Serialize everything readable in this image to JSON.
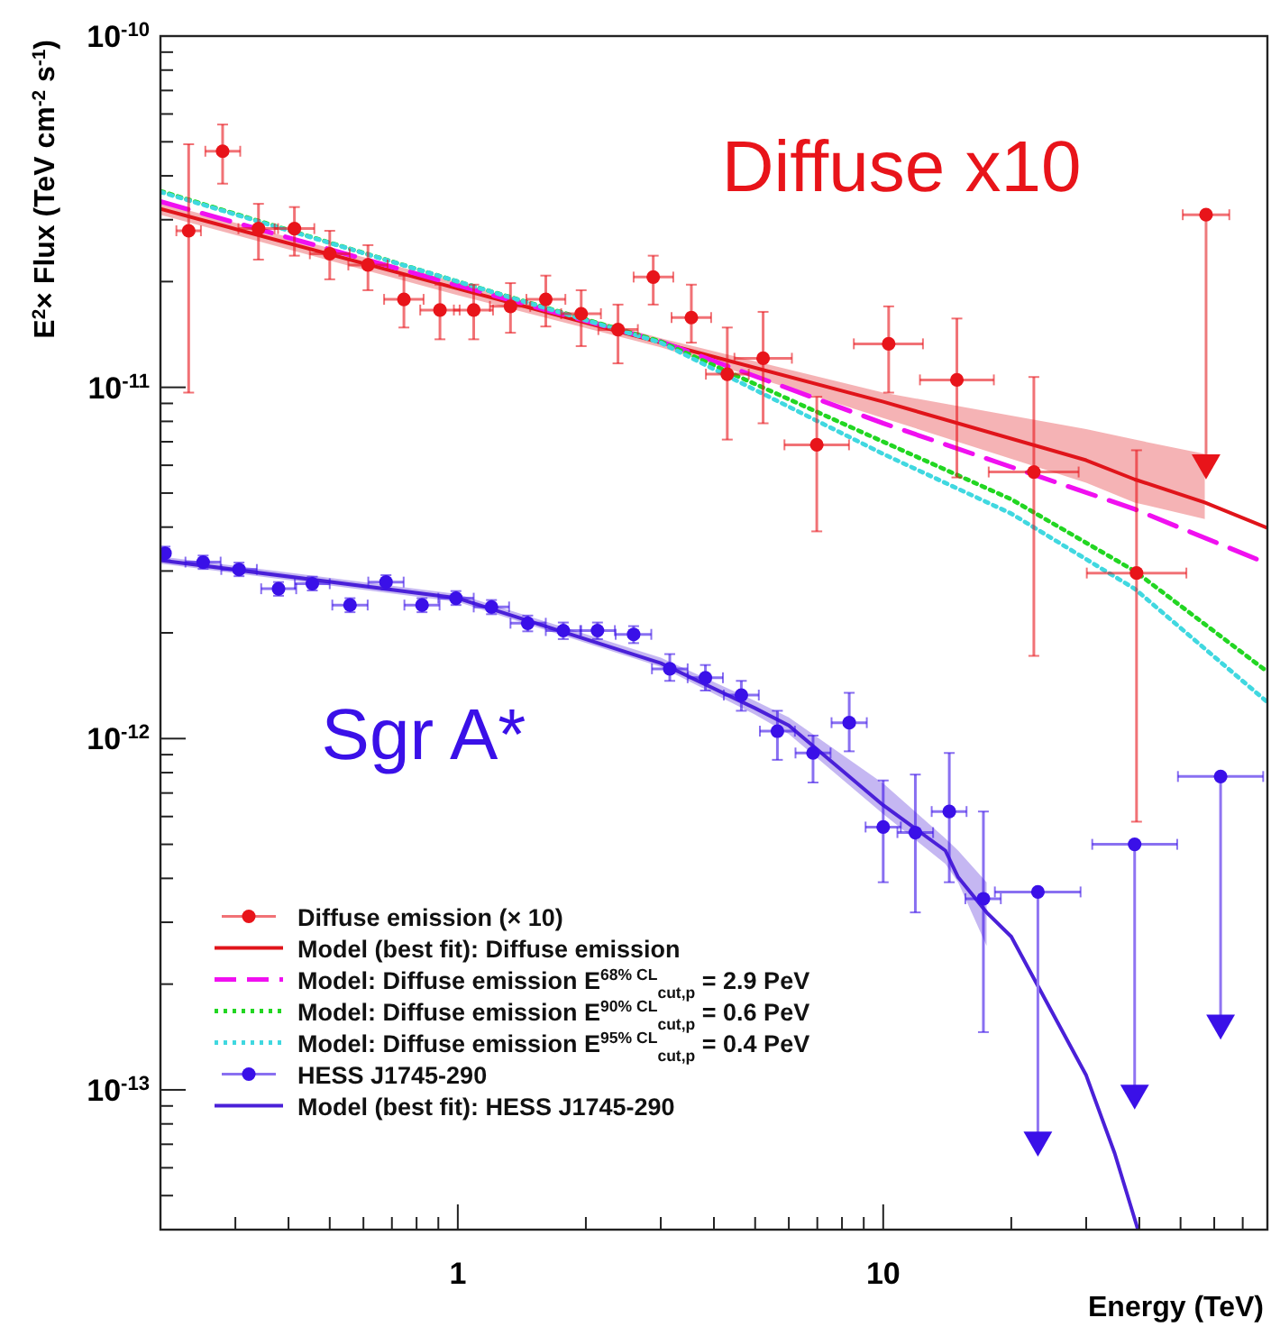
{
  "chart_data": {
    "type": "scatter",
    "xlabel": "Energy (TeV)",
    "ylabel": "E$^{2}$× Flux (TeV cm$^{-2}$ s$^{-1}$)",
    "log": "xy",
    "grid": false,
    "legend": "bottom left",
    "xlim": [
      0.2,
      80
    ],
    "ylim": [
      4e-14,
      1e-10
    ],
    "xticks": [
      {
        "value": 0.2,
        "label": null
      },
      {
        "value": 0.3,
        "label": null
      },
      {
        "value": 0.4,
        "label": null
      },
      {
        "value": 0.5,
        "label": null
      },
      {
        "value": 0.6,
        "label": null
      },
      {
        "value": 0.7,
        "label": null
      },
      {
        "value": 0.8,
        "label": null
      },
      {
        "value": 0.9,
        "label": null
      },
      1,
      {
        "value": 2,
        "label": null
      },
      {
        "value": 3,
        "label": null
      },
      {
        "value": 4,
        "label": null
      },
      {
        "value": 5,
        "label": null
      },
      {
        "value": 6,
        "label": null
      },
      {
        "value": 7,
        "label": null
      },
      {
        "value": 8,
        "label": null
      },
      {
        "value": 9,
        "label": null
      },
      10,
      {
        "value": 20,
        "label": null
      },
      {
        "value": 30,
        "label": null
      },
      {
        "value": 40,
        "label": null
      },
      {
        "value": 50,
        "label": null
      },
      {
        "value": 60,
        "label": null
      },
      {
        "value": 70,
        "label": null
      },
      {
        "value": 80,
        "label": null
      }
    ],
    "yticks": [
      {
        "value": 1e-10,
        "label": "10$^{-10}$"
      },
      {
        "value": 9e-11,
        "label": null
      },
      {
        "value": 8e-11,
        "label": null
      },
      {
        "value": 7e-11,
        "label": null
      },
      {
        "value": 6e-11,
        "label": null
      },
      {
        "value": 5e-11,
        "label": null
      },
      {
        "value": 4e-11,
        "label": null
      },
      {
        "value": 3e-11,
        "label": null
      },
      {
        "value": 2e-11,
        "label": null
      },
      {
        "value": 1e-11,
        "label": "10$^{-11}$"
      },
      {
        "value": 9e-12,
        "label": null
      },
      {
        "value": 8e-12,
        "label": null
      },
      {
        "value": 7e-12,
        "label": null
      },
      {
        "value": 6e-12,
        "label": null
      },
      {
        "value": 5e-12,
        "label": null
      },
      {
        "value": 4e-12,
        "label": null
      },
      {
        "value": 3e-12,
        "label": null
      },
      {
        "value": 2e-12,
        "label": null
      },
      {
        "value": 1e-12,
        "label": "10$^{-12}$"
      },
      {
        "value": 9e-13,
        "label": null
      },
      {
        "value": 8e-13,
        "label": null
      },
      {
        "value": 7e-13,
        "label": null
      },
      {
        "value": 6e-13,
        "label": null
      },
      {
        "value": 5e-13,
        "label": null
      },
      {
        "value": 4e-13,
        "label": null
      },
      {
        "value": 3e-13,
        "label": null
      },
      {
        "value": 2e-13,
        "label": null
      },
      {
        "value": 1e-13,
        "label": "10$^{-13}$"
      },
      {
        "value": 9e-14,
        "label": null
      },
      {
        "value": 8e-14,
        "label": null
      },
      {
        "value": 7e-14,
        "label": null
      },
      {
        "value": 6e-14,
        "label": null
      },
      {
        "value": 5e-14,
        "label": null
      }
    ],
    "annotations": [
      "Diffuse x10",
      "Sgr A*"
    ],
    "series": [
      {
        "name": "Diffuse emission (× 10)",
        "type": "scatter",
        "marker": "circle",
        "color": "#e8141a",
        "x": [
          0.233,
          0.28,
          0.34,
          0.413,
          0.5,
          0.615,
          0.747,
          0.908,
          1.09,
          1.33,
          1.61,
          1.95,
          2.38,
          2.88,
          3.54,
          4.3,
          5.22,
          6.98,
          10.3,
          14.9,
          22.6,
          39.4,
          57.4
        ],
        "values": [
          2.79e-11,
          4.7e-11,
          2.83e-11,
          2.83e-11,
          2.4e-11,
          2.23e-11,
          1.78e-11,
          1.66e-11,
          1.66e-11,
          1.7e-11,
          1.78e-11,
          1.62e-11,
          1.46e-11,
          2.06e-11,
          1.58e-11,
          1.09e-11,
          1.21e-11,
          6.86e-12,
          1.33e-11,
          1.05e-11,
          5.74e-12,
          2.96e-12,
          3.1e-11
        ],
        "errors": [
          [
            9.66e-12,
            4.92e-11
          ],
          [
            3.8e-11,
            5.6e-11
          ],
          [
            2.31e-11,
            3.33e-11
          ],
          [
            2.37e-11,
            3.26e-11
          ],
          [
            2.03e-11,
            2.79e-11
          ],
          [
            1.89e-11,
            2.54e-11
          ],
          [
            1.48e-11,
            2.08e-11
          ],
          [
            1.37e-11,
            1.96e-11
          ],
          [
            1.37e-11,
            1.96e-11
          ],
          [
            1.43e-11,
            1.98e-11
          ],
          [
            1.49e-11,
            2.08e-11
          ],
          [
            1.31e-11,
            1.89e-11
          ],
          [
            1.17e-11,
            1.72e-11
          ],
          [
            1.72e-11,
            2.37e-11
          ],
          [
            1.34e-11,
            1.96e-11
          ],
          [
            7.1e-12,
            1.48e-11
          ],
          [
            7.9e-12,
            1.64e-11
          ],
          [
            3.89e-12,
            9.4e-12
          ],
          [
            9.66e-12,
            1.7e-11
          ],
          [
            5.54e-12,
            1.57e-11
          ],
          [
            1.72e-12,
            1.07e-11
          ],
          [
            5.8e-13,
            6.62e-12
          ],
          null
        ],
        "xerrors": [
          [
            0.218,
            0.249
          ],
          [
            0.255,
            0.308
          ],
          [
            0.305,
            0.378
          ],
          [
            0.371,
            0.46
          ],
          [
            0.449,
            0.557
          ],
          [
            0.553,
            0.684
          ],
          [
            0.671,
            0.831
          ],
          [
            0.816,
            1.01
          ],
          [
            0.979,
            1.21
          ],
          [
            1.19,
            1.48
          ],
          [
            1.45,
            1.79
          ],
          [
            1.75,
            2.17
          ],
          [
            2.14,
            2.65
          ],
          [
            2.59,
            3.21
          ],
          [
            3.18,
            3.94
          ],
          [
            3.83,
            4.83
          ],
          [
            4.47,
            6.1
          ],
          [
            5.86,
            8.31
          ],
          [
            8.53,
            12.4
          ],
          [
            12.2,
            18.2
          ],
          [
            17.7,
            28.8
          ],
          [
            30.1,
            51.6
          ],
          [
            50.6,
            65.1
          ]
        ]
      },
      {
        "name": "Model (best fit): Diffuse emission",
        "type": "line",
        "line_style": "solid",
        "color": "#e0141a",
        "x": [
          0.2,
          1,
          3,
          10,
          30,
          39,
          57,
          80
        ],
        "values": [
          3.22e-11,
          1.91e-11,
          1.34e-11,
          9.1e-12,
          6.2e-12,
          5.47e-12,
          4.7e-12,
          3.98e-12
        ],
        "lower": [
          3.1e-11,
          1.83e-11,
          1.3e-11,
          8.18e-12,
          5.35e-12,
          4.7e-12,
          4.22e-12,
          null
        ],
        "upper": [
          3.35e-11,
          1.99e-11,
          1.38e-11,
          9.66e-12,
          7.6e-12,
          7.1e-12,
          6.46e-12,
          null
        ]
      },
      {
        "name": "Model: Diffuse emission E$^{68% CL}$$_{cut,p}$ = 2.9 PeV",
        "type": "line",
        "line_style": "dashed",
        "color": "#f010f0",
        "x": [
          0.2,
          1,
          3,
          10,
          39,
          80
        ],
        "values": [
          3.38e-11,
          1.95e-11,
          1.35e-11,
          7.9e-12,
          4.5e-12,
          3.15e-12
        ]
      },
      {
        "name": "Model: Diffuse emission E$^{90% CL}$$_{cut,p}$ = 0.6 PeV",
        "type": "line",
        "line_style": "dotted",
        "color": "#22d622",
        "x": [
          0.2,
          1,
          3,
          10,
          20,
          39,
          80
        ],
        "values": [
          3.62e-11,
          2e-11,
          1.35e-11,
          7e-12,
          4.8e-12,
          3e-12,
          1.55e-12
        ]
      },
      {
        "name": "Model: Diffuse emission E$^{95% CL}$$_{cut,p}$ = 0.4 PeV",
        "type": "line",
        "line_style": "dotted",
        "color": "#40d8e0",
        "x": [
          0.2,
          1,
          3,
          10,
          20,
          39,
          80
        ],
        "values": [
          3.6e-11,
          2e-11,
          1.34e-11,
          6.46e-12,
          4.37e-12,
          2.67e-12,
          1.27e-12
        ]
      },
      {
        "name": "HESS J1745-290",
        "type": "scatter",
        "marker": "circle",
        "color": "#3a10e8",
        "x": [
          0.205,
          0.252,
          0.306,
          0.379,
          0.455,
          0.558,
          0.678,
          0.824,
          0.99,
          1.2,
          1.46,
          1.77,
          2.13,
          2.59,
          3.15,
          3.82,
          4.64,
          5.64,
          6.84,
          8.32,
          10,
          11.9,
          14.3,
          17.2,
          23.1,
          39,
          62.1
        ],
        "values": [
          3.37e-12,
          3.18e-12,
          3.03e-12,
          2.67e-12,
          2.76e-12,
          2.4e-12,
          2.79e-12,
          2.4e-12,
          2.51e-12,
          2.37e-12,
          2.13e-12,
          2.03e-12,
          2.03e-12,
          1.98e-12,
          1.58e-12,
          1.49e-12,
          1.33e-12,
          1.05e-12,
          9.1e-13,
          1.11e-12,
          5.6e-13,
          5.4e-13,
          6.2e-13,
          3.5e-13,
          3.66e-13,
          5e-13,
          7.8e-13
        ],
        "errors": [
          [
            3.22e-12,
            3.52e-12
          ],
          [
            3.04e-12,
            3.32e-12
          ],
          [
            2.9e-12,
            3.17e-12
          ],
          [
            2.55e-12,
            2.79e-12
          ],
          [
            2.64e-12,
            2.89e-12
          ],
          [
            2.29e-12,
            2.51e-12
          ],
          [
            2.66e-12,
            2.92e-12
          ],
          [
            2.29e-12,
            2.51e-12
          ],
          [
            2.4e-12,
            2.63e-12
          ],
          [
            2.26e-12,
            2.48e-12
          ],
          [
            2.02e-12,
            2.24e-12
          ],
          [
            1.92e-12,
            2.14e-12
          ],
          [
            1.92e-12,
            2.14e-12
          ],
          [
            1.87e-12,
            2.09e-12
          ],
          [
            1.46e-12,
            1.74e-12
          ],
          [
            1.37e-12,
            1.62e-12
          ],
          [
            1.2e-12,
            1.46e-12
          ],
          [
            8.7e-13,
            1.2e-12
          ],
          [
            7.5e-13,
            1.02e-12
          ],
          [
            9.2e-13,
            1.35e-12
          ],
          [
            3.9e-13,
            7.6e-13
          ],
          [
            3.2e-13,
            7.9e-13
          ],
          [
            3.9e-13,
            9.1e-13
          ],
          [
            1.46e-13,
            6.2e-13
          ],
          null,
          null,
          null
        ],
        "xerrors": [
          null,
          [
            0.229,
            0.277
          ],
          [
            0.278,
            0.337
          ],
          [
            0.345,
            0.417
          ],
          [
            0.414,
            0.5
          ],
          [
            0.507,
            0.614
          ],
          [
            0.616,
            0.746
          ],
          [
            0.749,
            0.906
          ],
          [
            0.9,
            1.09
          ],
          [
            1.09,
            1.32
          ],
          [
            1.33,
            1.61
          ],
          [
            1.61,
            1.95
          ],
          [
            1.94,
            2.34
          ],
          [
            2.35,
            2.85
          ],
          [
            2.86,
            3.47
          ],
          [
            3.47,
            4.2
          ],
          [
            4.22,
            5.1
          ],
          [
            5.13,
            6.2
          ],
          [
            6.22,
            7.52
          ],
          [
            7.56,
            9.15
          ],
          [
            9.09,
            11
          ],
          [
            10.8,
            13.1
          ],
          [
            13,
            15.7
          ],
          [
            15.6,
            18.9
          ],
          [
            18.3,
            29.1
          ],
          [
            31,
            49.1
          ],
          [
            49.3,
            78.2
          ]
        ]
      },
      {
        "name": "Model (best fit): HESS J1745-290",
        "type": "line",
        "line_style": "solid",
        "color": "#4a20d8",
        "x": [
          0.2,
          1,
          3,
          5,
          6,
          10,
          14,
          15,
          17.5,
          20,
          30,
          35,
          39.7
        ],
        "values": [
          3.22e-12,
          2.51e-12,
          1.64e-12,
          1.22e-12,
          1.09e-12,
          6.46e-13,
          4.8e-13,
          4.03e-13,
          3.2e-13,
          2.73e-13,
          1.1e-13,
          6.6e-14,
          4e-14
        ],
        "lower": [
          3.15e-12,
          2.45e-12,
          1.6e-12,
          1.17e-12,
          1.03e-12,
          6.1e-13,
          4.4e-13,
          3.9e-13,
          2.57e-13,
          null,
          null,
          null,
          null
        ],
        "upper": [
          3.3e-12,
          2.58e-12,
          1.7e-12,
          1.28e-12,
          1.15e-12,
          7.45e-13,
          5.2e-13,
          4.8e-13,
          3.9e-13,
          null,
          null,
          null,
          null
        ]
      },
      {
        "type": "line",
        "line_style": "solid",
        "color": "#ee7a7c",
        "x": [
          57.4,
          57.4
        ],
        "values": [
          3.1e-11,
          6.1e-12
        ]
      },
      {
        "type": "line",
        "line_style": "solid",
        "color": "#8f74f2",
        "x": [
          23.1,
          23.1
        ],
        "values": [
          3.66e-13,
          7.2e-14
        ]
      },
      {
        "type": "line",
        "line_style": "solid",
        "color": "#8f74f2",
        "x": [
          39,
          39
        ],
        "values": [
          5e-13,
          9.8e-14
        ]
      },
      {
        "type": "line",
        "line_style": "solid",
        "color": "#8f74f2",
        "x": [
          62.1,
          62.1
        ],
        "values": [
          7.8e-13,
          1.55e-13
        ]
      },
      {
        "type": "scatter",
        "marker": "triangle",
        "color": "#e8141a",
        "x": [
          57.4
        ],
        "values": [
          6.1e-12
        ]
      },
      {
        "type": "scatter",
        "marker": "triangle",
        "color": "#3a10e8",
        "x": [
          23.1,
          39,
          62.1
        ],
        "values": [
          7.2e-14,
          9.8e-14,
          1.55e-13
        ]
      }
    ]
  }
}
